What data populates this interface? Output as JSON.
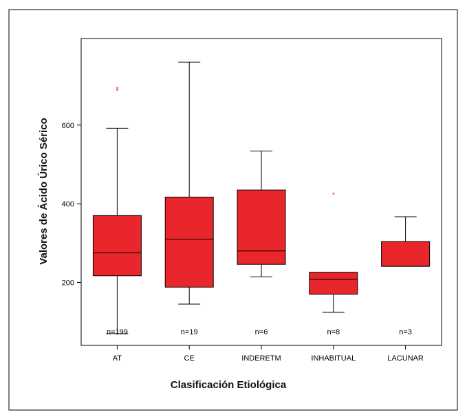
{
  "chart_data": {
    "type": "boxplot",
    "title": "",
    "xlabel": "Clasificación Etiológica",
    "ylabel": "Valores de Ácido Úrico Sérico",
    "ylim": [
      40,
      820
    ],
    "yticks": [
      200,
      400,
      600
    ],
    "ytick_labels": [
      "200",
      "400",
      "600"
    ],
    "grid": false,
    "legend": "none",
    "box_color": "#e8262b",
    "outlier_color": "#e8262b",
    "categories": [
      "AT",
      "CE",
      "INDERETM",
      "INHABITUAL",
      "LACUNAR"
    ],
    "n_labels": [
      "n=199",
      "n=19",
      "n=6",
      "n=8",
      "n=3"
    ],
    "boxes": [
      {
        "whisker_low": 70,
        "q1": 217,
        "median": 275,
        "q3": 370,
        "whisker_high": 592,
        "outliers": [
          688,
          692
        ]
      },
      {
        "whisker_low": 145,
        "q1": 188,
        "median": 310,
        "q3": 417,
        "whisker_high": 760,
        "outliers": []
      },
      {
        "whisker_low": 214,
        "q1": 246,
        "median": 280,
        "q3": 435,
        "whisker_high": 534,
        "outliers": []
      },
      {
        "whisker_low": 124,
        "q1": 170,
        "median": 208,
        "q3": 226,
        "whisker_high": 226,
        "outliers": [
          424
        ]
      },
      {
        "whisker_low": 241,
        "q1": 241,
        "median": 241,
        "q3": 304,
        "whisker_high": 367,
        "outliers": []
      }
    ]
  }
}
